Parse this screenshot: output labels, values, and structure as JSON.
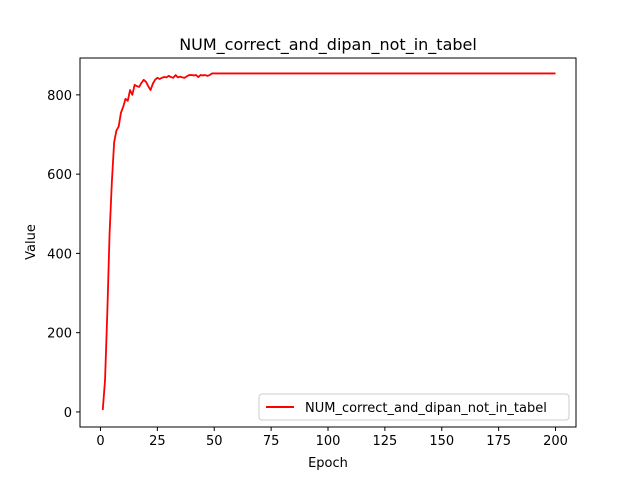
{
  "chart_data": {
    "type": "line",
    "title": "NUM_correct_and_dipan_not_in_tabel",
    "xlabel": "Epoch",
    "ylabel": "Value",
    "xlim": [
      -9,
      209
    ],
    "ylim": [
      -38,
      893
    ],
    "xticks": [
      0,
      25,
      50,
      75,
      100,
      125,
      150,
      175,
      200
    ],
    "yticks": [
      0,
      200,
      400,
      600,
      800
    ],
    "grid": false,
    "legend_position": "lower right",
    "series": [
      {
        "name": "NUM_correct_and_dipan_not_in_tabel",
        "color": "#ff0000",
        "x": [
          1,
          2,
          3,
          4,
          5,
          6,
          7,
          8,
          9,
          10,
          11,
          12,
          13,
          14,
          15,
          16,
          17,
          18,
          19,
          20,
          21,
          22,
          23,
          24,
          25,
          26,
          27,
          28,
          29,
          30,
          31,
          32,
          33,
          34,
          35,
          36,
          37,
          38,
          39,
          40,
          41,
          42,
          43,
          44,
          45,
          46,
          47,
          48,
          49,
          50,
          200
        ],
        "y": [
          5,
          80,
          250,
          450,
          580,
          680,
          710,
          720,
          755,
          770,
          790,
          785,
          812,
          800,
          825,
          822,
          820,
          830,
          838,
          833,
          822,
          812,
          828,
          838,
          843,
          840,
          843,
          845,
          844,
          848,
          845,
          843,
          850,
          844,
          846,
          844,
          843,
          847,
          850,
          850,
          849,
          850,
          845,
          850,
          849,
          850,
          848,
          850,
          854,
          854,
          854
        ]
      }
    ]
  }
}
